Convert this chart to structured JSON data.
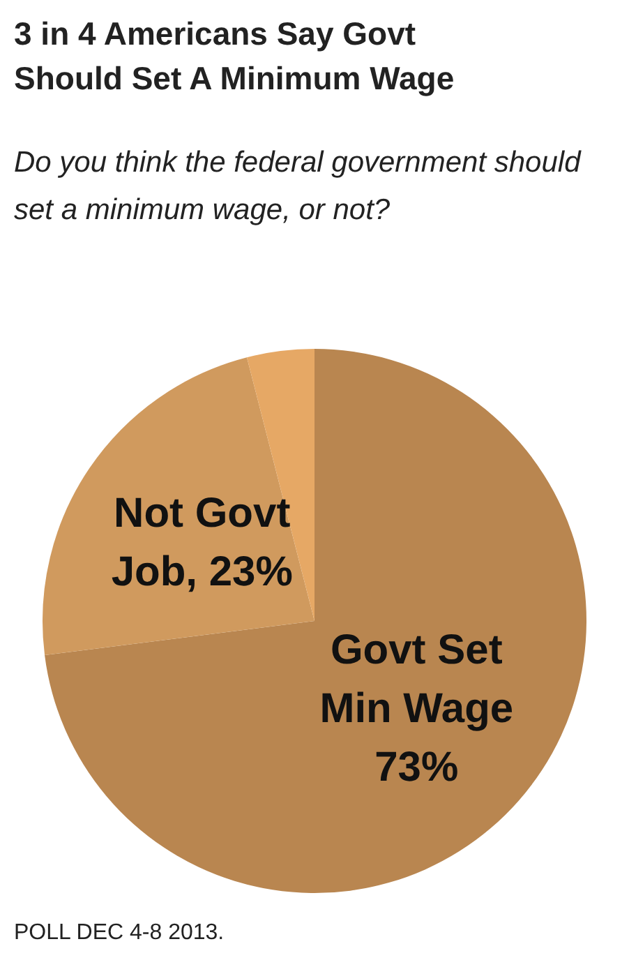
{
  "chart_data": {
    "type": "pie",
    "title": "3 in 4 Americans Say Govt Should Set A Minimum Wage",
    "subtitle": "Do you think the federal government should set a minimum wage, or not?",
    "categories": [
      "Govt Set Min Wage",
      "Not Govt Job",
      null
    ],
    "values": [
      73,
      23,
      4
    ],
    "colors": [
      "#b98650",
      "#d09a5e",
      "#e6a865"
    ],
    "value_labels": [
      "73%",
      "23%",
      null
    ],
    "legend": false,
    "annotations": [
      "POLL DEC 4-8 2013."
    ]
  }
}
